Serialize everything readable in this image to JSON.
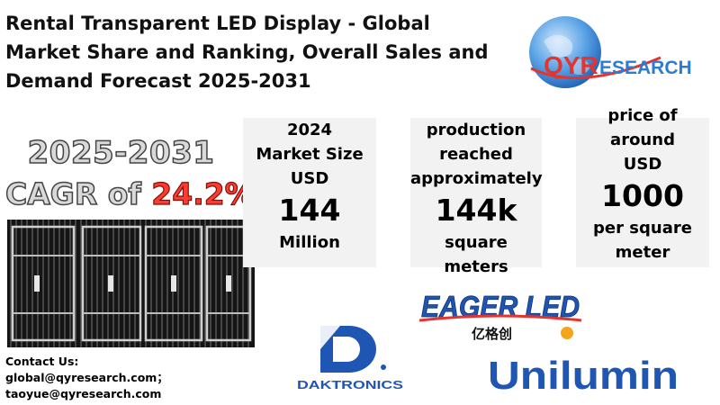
{
  "title": {
    "line1": "Rental Transparent LED Display - Global",
    "line2": "Market Share and Ranking, Overall Sales and",
    "line3": "Demand Forecast 2025-2031"
  },
  "brand": {
    "qyr_logo_text": "QYRESEARCH",
    "accent": "#e3342f",
    "globe": "#2b7cd3"
  },
  "cagr": {
    "years": "2025-2031",
    "prefix": "CAGR of ",
    "value": "24.2%"
  },
  "stats": [
    {
      "lines": [
        "2024",
        "Market Size",
        "USD"
      ],
      "big": "144",
      "bottom": [
        "Million"
      ]
    },
    {
      "lines": [
        "production",
        "reached",
        "approximately"
      ],
      "big": "144k",
      "bottom": [
        "square meters"
      ]
    },
    {
      "lines": [
        "price of",
        "around",
        "USD"
      ],
      "big": "1000",
      "bottom": [
        "per square",
        "meter"
      ]
    }
  ],
  "contact": {
    "heading": "Contact Us:",
    "email1": "global@qyresearch.com；",
    "email2": "taoyue@qyresearch.com"
  },
  "companies": {
    "eager": {
      "name": "EAGER LED",
      "sub": "亿格创"
    },
    "daktronics": {
      "name": "DAKTRONICS"
    },
    "unilumin": {
      "name": "Unilumin"
    }
  }
}
